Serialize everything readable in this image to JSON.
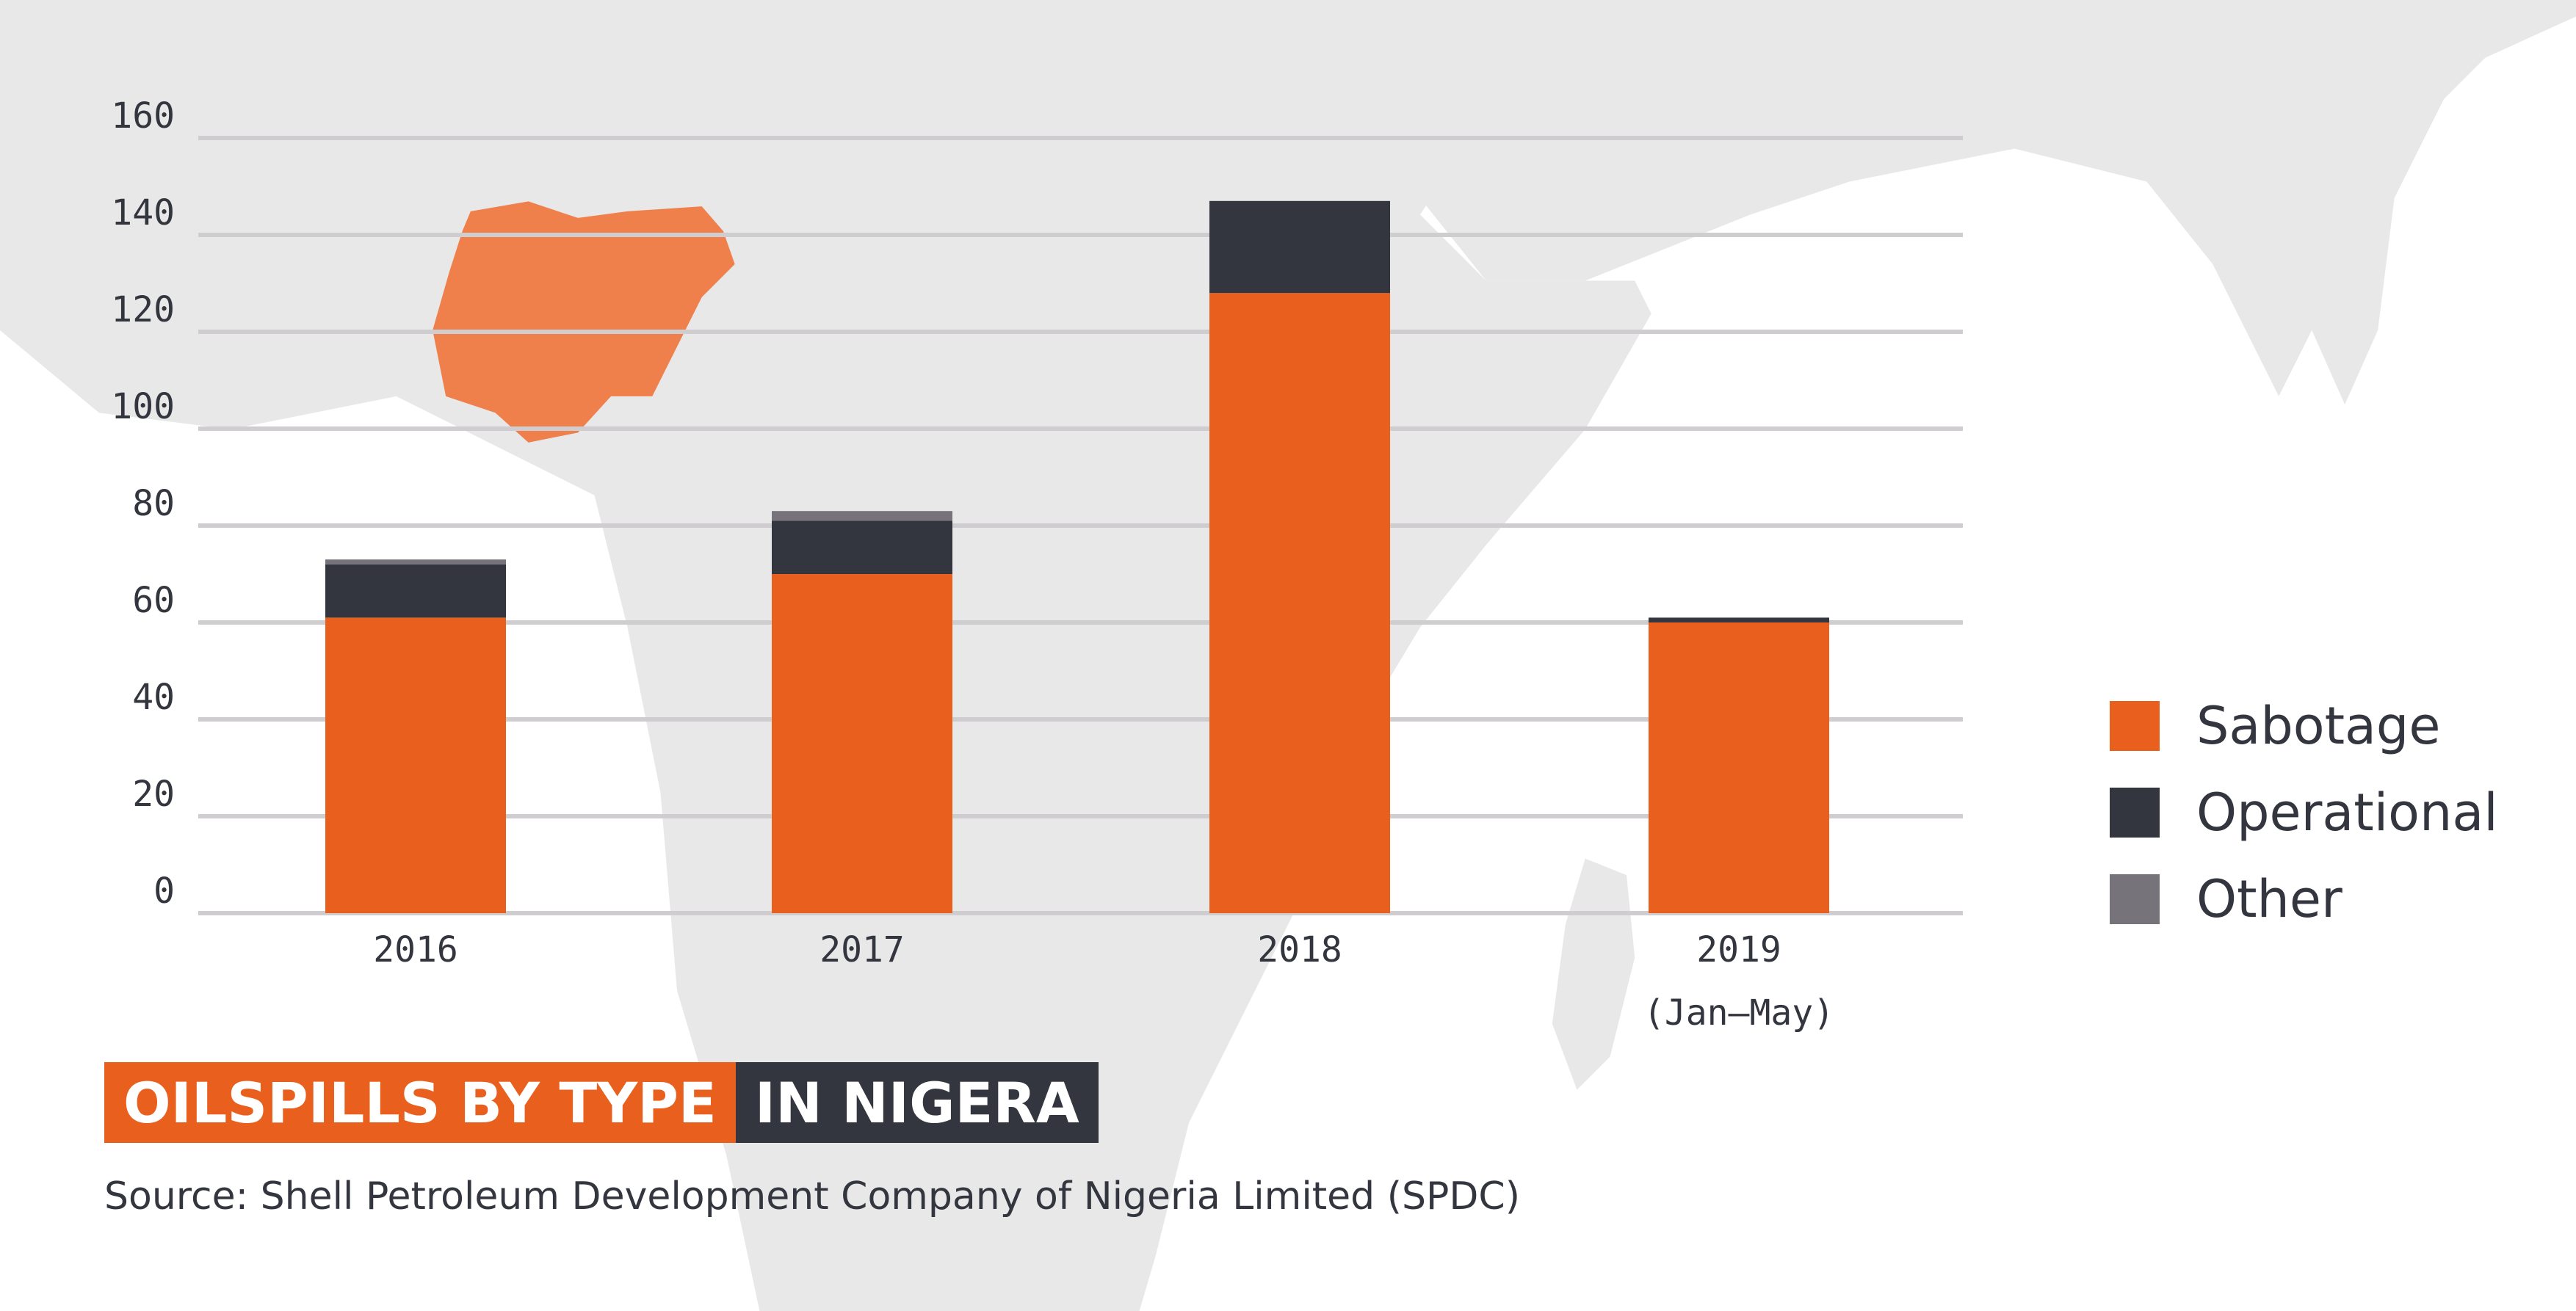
{
  "colors": {
    "sabotage": "#e95f1e",
    "operational": "#34363f",
    "other": "#76737a",
    "grid": "#cfcdd0",
    "map": "#e8e8e8",
    "nigeria": "#ef7f4b"
  },
  "title": {
    "part1": "OILSPILLS BY TYPE",
    "part2": "IN NIGERA"
  },
  "source": "Source: Shell Petroleum Development Company of Nigeria Limited (SPDC)",
  "chart_data": {
    "type": "bar",
    "stacked": true,
    "categories": [
      "2016",
      "2017",
      "2018",
      "2019"
    ],
    "category_sublabels": [
      "",
      "",
      "",
      "(Jan–May)"
    ],
    "series": [
      {
        "name": "Sabotage",
        "values": [
          61,
          70,
          128,
          60
        ]
      },
      {
        "name": "Operational",
        "values": [
          11,
          11,
          19,
          1
        ]
      },
      {
        "name": "Other",
        "values": [
          1,
          2,
          0,
          0
        ]
      }
    ],
    "yticks": [
      0,
      20,
      40,
      60,
      80,
      100,
      120,
      140,
      160
    ],
    "ylim": [
      0,
      160
    ],
    "grid": true,
    "legend": "right"
  }
}
